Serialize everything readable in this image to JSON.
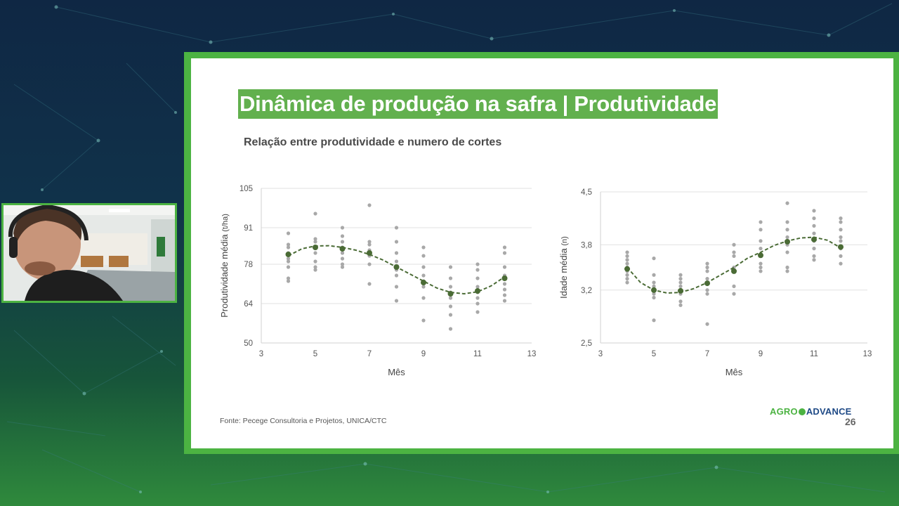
{
  "slide": {
    "title": "Dinâmica de produção na safra | Produtividade",
    "subtitle": "Relação entre produtividade e numero de cortes",
    "source": "Fonte: Pecege Consultoria e Projetos, UNICA/CTC",
    "logo_left": "AGRO",
    "logo_right": "ADVANCE",
    "page_number": "26"
  },
  "colors": {
    "frame": "#4cb342",
    "title_bg": "#62b04e",
    "mean_point": "#4a6b35",
    "trend_line": "#4a6b35",
    "scatter": "#a8a8a8"
  },
  "chart_data": [
    {
      "type": "scatter",
      "title": "",
      "xlabel": "Mês",
      "ylabel": "Produtividade média",
      "ylabel_unit": "(t/ha)",
      "xlim": [
        3,
        13
      ],
      "ylim": [
        50,
        105
      ],
      "xticks": [
        3,
        5,
        7,
        9,
        11,
        13
      ],
      "yticks": [
        50,
        64,
        78,
        91,
        105
      ],
      "grid": "horizontal",
      "series": [
        {
          "role": "observations",
          "points": [
            [
              4,
              89
            ],
            [
              4,
              85
            ],
            [
              4,
              84
            ],
            [
              4,
              82
            ],
            [
              4,
              80
            ],
            [
              4,
              79
            ],
            [
              4,
              77
            ],
            [
              4,
              73
            ],
            [
              4,
              72
            ],
            [
              5,
              96
            ],
            [
              5,
              87
            ],
            [
              5,
              86
            ],
            [
              5,
              84
            ],
            [
              5,
              82
            ],
            [
              5,
              79
            ],
            [
              5,
              77
            ],
            [
              5,
              76
            ],
            [
              6,
              91
            ],
            [
              6,
              88
            ],
            [
              6,
              86
            ],
            [
              6,
              84
            ],
            [
              6,
              82
            ],
            [
              6,
              80
            ],
            [
              6,
              78
            ],
            [
              6,
              77
            ],
            [
              7,
              99
            ],
            [
              7,
              86
            ],
            [
              7,
              85
            ],
            [
              7,
              83
            ],
            [
              7,
              81
            ],
            [
              7,
              78
            ],
            [
              7,
              71
            ],
            [
              8,
              91
            ],
            [
              8,
              86
            ],
            [
              8,
              82
            ],
            [
              8,
              79
            ],
            [
              8,
              76
            ],
            [
              8,
              74
            ],
            [
              8,
              70
            ],
            [
              8,
              65
            ],
            [
              9,
              84
            ],
            [
              9,
              81
            ],
            [
              9,
              77
            ],
            [
              9,
              74
            ],
            [
              9,
              72
            ],
            [
              9,
              70
            ],
            [
              9,
              66
            ],
            [
              9,
              58
            ],
            [
              10,
              77
            ],
            [
              10,
              73
            ],
            [
              10,
              70
            ],
            [
              10,
              68
            ],
            [
              10,
              66
            ],
            [
              10,
              63
            ],
            [
              10,
              60
            ],
            [
              10,
              55
            ],
            [
              11,
              78
            ],
            [
              11,
              76
            ],
            [
              11,
              73
            ],
            [
              11,
              70
            ],
            [
              11,
              68
            ],
            [
              11,
              66
            ],
            [
              11,
              64
            ],
            [
              11,
              61
            ],
            [
              12,
              84
            ],
            [
              12,
              82
            ],
            [
              12,
              77
            ],
            [
              12,
              74
            ],
            [
              12,
              71
            ],
            [
              12,
              69
            ],
            [
              12,
              67
            ],
            [
              12,
              65
            ]
          ]
        },
        {
          "role": "monthly_mean",
          "points": [
            [
              4,
              81.5
            ],
            [
              5,
              84
            ],
            [
              6,
              83.5
            ],
            [
              7,
              82
            ],
            [
              8,
              77
            ],
            [
              9,
              71.5
            ],
            [
              10,
              67.5
            ],
            [
              11,
              68.5
            ],
            [
              12,
              73
            ]
          ]
        },
        {
          "role": "trend",
          "style": "dashed",
          "points": [
            [
              4,
              81
            ],
            [
              4.5,
              83.5
            ],
            [
              5,
              84.5
            ],
            [
              5.5,
              84.6
            ],
            [
              6,
              84
            ],
            [
              6.5,
              83
            ],
            [
              7,
              81.5
            ],
            [
              7.5,
              79.5
            ],
            [
              8,
              77
            ],
            [
              8.5,
              74.5
            ],
            [
              9,
              72
            ],
            [
              9.5,
              69.5
            ],
            [
              10,
              68
            ],
            [
              10.5,
              67.5
            ],
            [
              11,
              68.2
            ],
            [
              11.5,
              70.3
            ],
            [
              12,
              73.5
            ]
          ]
        }
      ]
    },
    {
      "type": "scatter",
      "title": "",
      "xlabel": "Mês",
      "ylabel": "Idade média",
      "ylabel_unit": "(n)",
      "xlim": [
        3,
        13
      ],
      "ylim": [
        2.5,
        4.5
      ],
      "yticklabels": [
        "2,5",
        "3,2",
        "3,8",
        "4,5"
      ],
      "yticks": [
        2.5,
        3.2,
        3.8,
        4.5
      ],
      "xticks": [
        3,
        5,
        7,
        9,
        11,
        13
      ],
      "grid": "horizontal",
      "series": [
        {
          "role": "observations",
          "points": [
            [
              4,
              3.7
            ],
            [
              4,
              3.65
            ],
            [
              4,
              3.6
            ],
            [
              4,
              3.55
            ],
            [
              4,
              3.5
            ],
            [
              4,
              3.45
            ],
            [
              4,
              3.4
            ],
            [
              4,
              3.35
            ],
            [
              4,
              3.3
            ],
            [
              5,
              3.62
            ],
            [
              5,
              3.4
            ],
            [
              5,
              3.3
            ],
            [
              5,
              3.25
            ],
            [
              5,
              3.2
            ],
            [
              5,
              3.15
            ],
            [
              5,
              3.1
            ],
            [
              5,
              2.8
            ],
            [
              6,
              3.4
            ],
            [
              6,
              3.35
            ],
            [
              6,
              3.3
            ],
            [
              6,
              3.25
            ],
            [
              6,
              3.2
            ],
            [
              6,
              3.15
            ],
            [
              6,
              3.05
            ],
            [
              6,
              3.0
            ],
            [
              7,
              3.55
            ],
            [
              7,
              3.5
            ],
            [
              7,
              3.45
            ],
            [
              7,
              3.35
            ],
            [
              7,
              3.3
            ],
            [
              7,
              3.2
            ],
            [
              7,
              3.15
            ],
            [
              7,
              2.75
            ],
            [
              8,
              3.8
            ],
            [
              8,
              3.7
            ],
            [
              8,
              3.65
            ],
            [
              8,
              3.5
            ],
            [
              8,
              3.45
            ],
            [
              8,
              3.25
            ],
            [
              8,
              3.15
            ],
            [
              9,
              4.1
            ],
            [
              9,
              4.0
            ],
            [
              9,
              3.85
            ],
            [
              9,
              3.75
            ],
            [
              9,
              3.65
            ],
            [
              9,
              3.55
            ],
            [
              9,
              3.5
            ],
            [
              9,
              3.45
            ],
            [
              10,
              4.35
            ],
            [
              10,
              4.1
            ],
            [
              10,
              4.0
            ],
            [
              10,
              3.9
            ],
            [
              10,
              3.8
            ],
            [
              10,
              3.7
            ],
            [
              10,
              3.5
            ],
            [
              10,
              3.45
            ],
            [
              11,
              4.25
            ],
            [
              11,
              4.15
            ],
            [
              11,
              4.05
            ],
            [
              11,
              3.95
            ],
            [
              11,
              3.85
            ],
            [
              11,
              3.75
            ],
            [
              11,
              3.65
            ],
            [
              11,
              3.6
            ],
            [
              12,
              4.15
            ],
            [
              12,
              4.1
            ],
            [
              12,
              4.0
            ],
            [
              12,
              3.9
            ],
            [
              12,
              3.85
            ],
            [
              12,
              3.75
            ],
            [
              12,
              3.65
            ],
            [
              12,
              3.55
            ]
          ]
        },
        {
          "role": "monthly_mean",
          "points": [
            [
              4,
              3.48
            ],
            [
              5,
              3.2
            ],
            [
              6,
              3.19
            ],
            [
              7,
              3.29
            ],
            [
              8,
              3.45
            ],
            [
              9,
              3.66
            ],
            [
              10,
              3.84
            ],
            [
              11,
              3.87
            ],
            [
              12,
              3.77
            ]
          ]
        },
        {
          "role": "trend",
          "style": "dashed",
          "points": [
            [
              4,
              3.5
            ],
            [
              4.5,
              3.3
            ],
            [
              5,
              3.2
            ],
            [
              5.5,
              3.16
            ],
            [
              6,
              3.17
            ],
            [
              6.5,
              3.22
            ],
            [
              7,
              3.3
            ],
            [
              7.5,
              3.4
            ],
            [
              8,
              3.5
            ],
            [
              8.5,
              3.62
            ],
            [
              9,
              3.7
            ],
            [
              9.5,
              3.79
            ],
            [
              10,
              3.85
            ],
            [
              10.5,
              3.89
            ],
            [
              11,
              3.9
            ],
            [
              11.5,
              3.86
            ],
            [
              12,
              3.76
            ]
          ]
        }
      ]
    }
  ]
}
